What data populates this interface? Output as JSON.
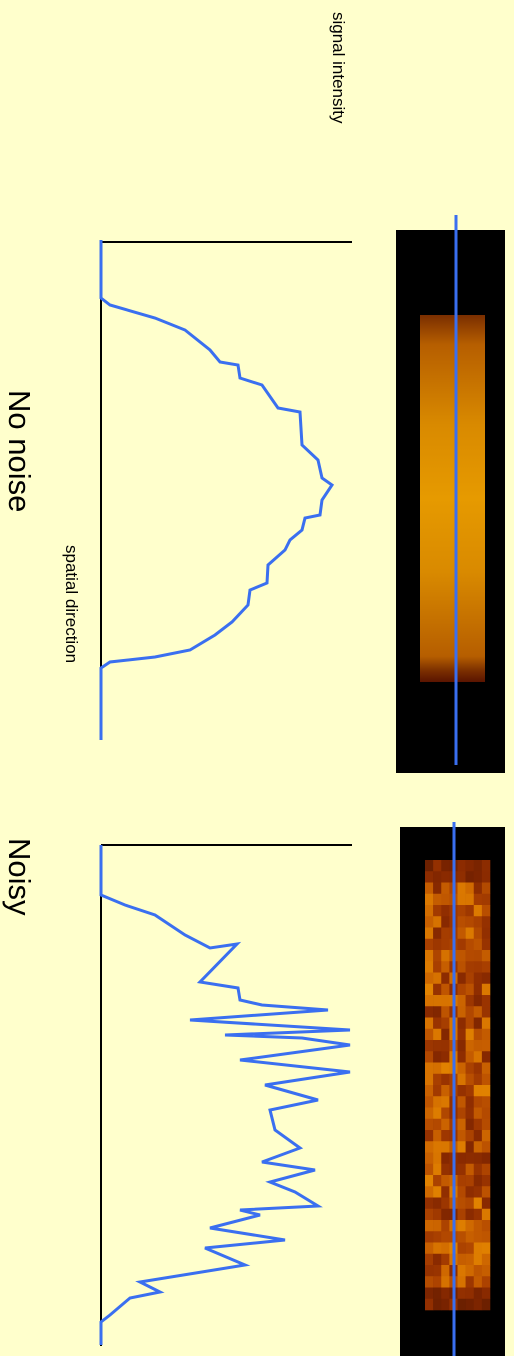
{
  "axes": {
    "signal": "signal intensity",
    "spatial": "spatial direction"
  },
  "panels": [
    {
      "title": "No noise"
    },
    {
      "title": "Noisy"
    }
  ]
}
